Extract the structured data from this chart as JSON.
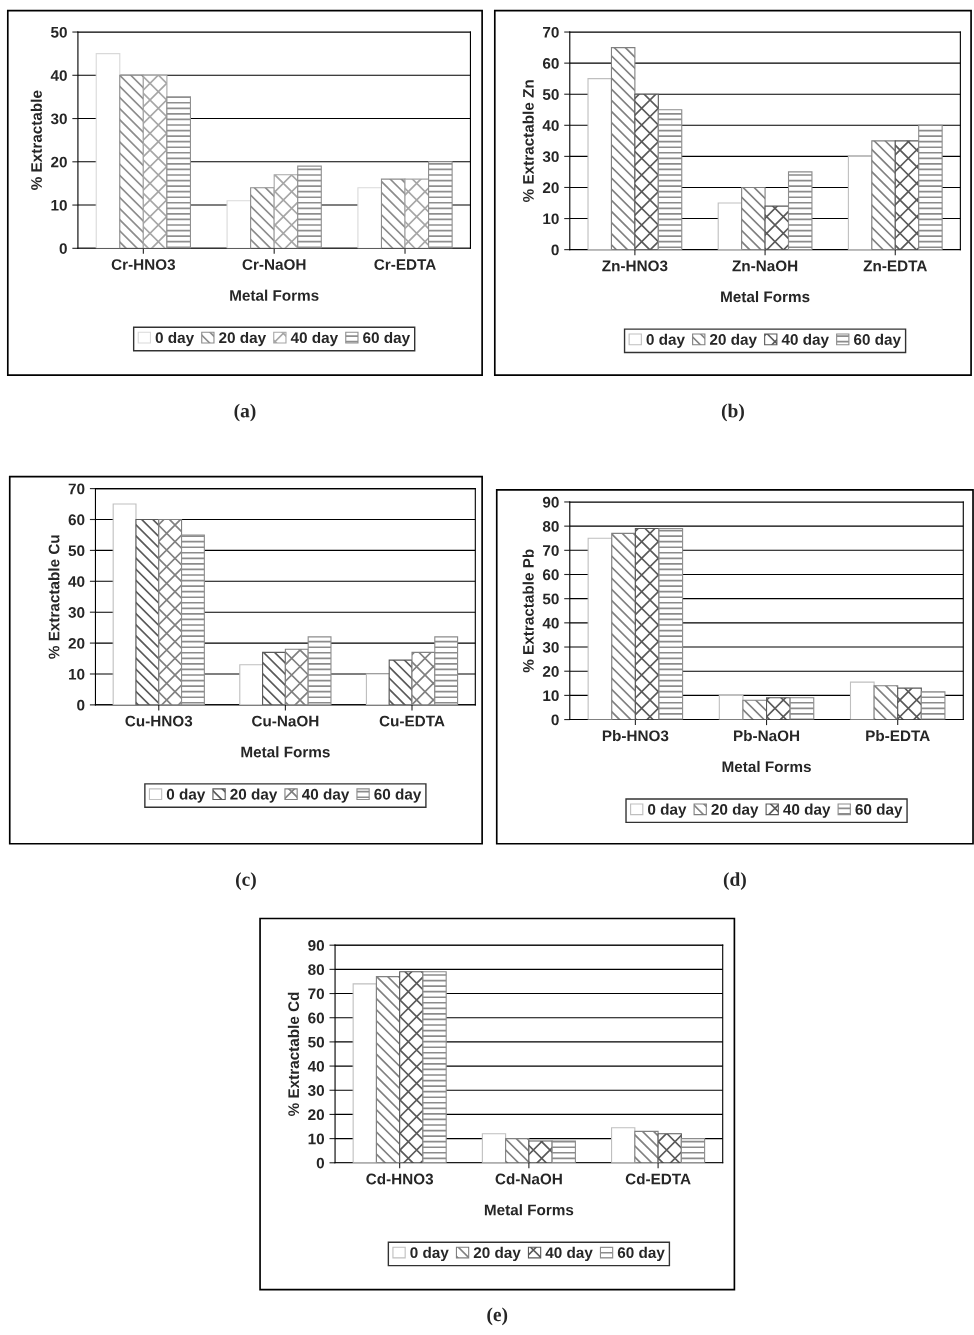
{
  "chart_data": [
    {
      "type": "bar",
      "categories": [
        "Cr-HNO3",
        "Cr-NaOH",
        "Cr-EDTA"
      ],
      "xlabel": "Metal Forms",
      "ylabel": "% Extractable",
      "ylim": [
        0,
        50
      ],
      "yticks": [
        0,
        10,
        20,
        30,
        40,
        50
      ],
      "grid": "y",
      "legend": "bottom",
      "annotations": [
        "(a)"
      ],
      "series": [
        {
          "name": "0 day",
          "color": "#d9d9d9",
          "values": [
            45,
            11,
            14
          ]
        },
        {
          "name": "20 day",
          "color": "#8c8c8c",
          "values": [
            40,
            14,
            16
          ]
        },
        {
          "name": "40 day",
          "color": "#a6a6a6",
          "values": [
            40,
            17,
            16
          ]
        },
        {
          "name": "60 day",
          "color": "#8f8f8f",
          "values": [
            35,
            19,
            20
          ]
        }
      ]
    },
    {
      "type": "bar",
      "categories": [
        "Zn-HNO3",
        "Zn-NaOH",
        "Zn-EDTA"
      ],
      "xlabel": "Metal Forms",
      "ylabel": "% Extractable Zn",
      "ylim": [
        0,
        70
      ],
      "yticks": [
        0,
        10,
        20,
        30,
        40,
        50,
        60,
        70
      ],
      "grid": "y",
      "legend": "bottom",
      "annotations": [
        "(b)"
      ],
      "series": [
        {
          "name": "0 day",
          "color": "#bfbfbf",
          "values": [
            55,
            15,
            30
          ]
        },
        {
          "name": "20 day",
          "color": "#808080",
          "values": [
            65,
            20,
            35
          ]
        },
        {
          "name": "40 day",
          "color": "#595959",
          "values": [
            50,
            14,
            35
          ]
        },
        {
          "name": "60 day",
          "color": "#8c8c8c",
          "values": [
            45,
            25,
            40
          ]
        }
      ]
    },
    {
      "type": "bar",
      "categories": [
        "Cu-HNO3",
        "Cu-NaOH",
        "Cu-EDTA"
      ],
      "xlabel": "Metal Forms",
      "ylabel": "% Extractable Cu",
      "ylim": [
        0,
        70
      ],
      "yticks": [
        0,
        10,
        20,
        30,
        40,
        50,
        60,
        70
      ],
      "grid": "y",
      "legend": "bottom",
      "annotations": [
        "(c)"
      ],
      "series": [
        {
          "name": "0 day",
          "color": "#bfbfbf",
          "values": [
            65,
            13,
            10
          ]
        },
        {
          "name": "20 day",
          "color": "#595959",
          "values": [
            60,
            17,
            14.5
          ]
        },
        {
          "name": "40 day",
          "color": "#808080",
          "values": [
            60,
            18,
            17
          ]
        },
        {
          "name": "60 day",
          "color": "#8c8c8c",
          "values": [
            55,
            22,
            22
          ]
        }
      ]
    },
    {
      "type": "bar",
      "categories": [
        "Pb-HNO3",
        "Pb-NaOH",
        "Pb-EDTA"
      ],
      "xlabel": "Metal Forms",
      "ylabel": "% Extractable Pb",
      "ylim": [
        0,
        90
      ],
      "yticks": [
        0,
        10,
        20,
        30,
        40,
        50,
        60,
        70,
        80,
        90
      ],
      "grid": "y",
      "legend": "bottom",
      "annotations": [
        "(d)"
      ],
      "series": [
        {
          "name": "0 day",
          "color": "#bfbfbf",
          "values": [
            75,
            10,
            15.5
          ]
        },
        {
          "name": "20 day",
          "color": "#808080",
          "values": [
            77,
            8,
            14
          ]
        },
        {
          "name": "40 day",
          "color": "#595959",
          "values": [
            79,
            9,
            13
          ]
        },
        {
          "name": "60 day",
          "color": "#8c8c8c",
          "values": [
            79,
            9,
            11.5
          ]
        }
      ]
    },
    {
      "type": "bar",
      "categories": [
        "Cd-HNO3",
        "Cd-NaOH",
        "Cd-EDTA"
      ],
      "xlabel": "Metal Forms",
      "ylabel": "% Extractable Cd",
      "ylim": [
        0,
        90
      ],
      "yticks": [
        0,
        10,
        20,
        30,
        40,
        50,
        60,
        70,
        80,
        90
      ],
      "grid": "y",
      "legend": "bottom",
      "annotations": [
        "(e)"
      ],
      "series": [
        {
          "name": "0 day",
          "color": "#bfbfbf",
          "values": [
            74,
            12,
            14.5
          ]
        },
        {
          "name": "20 day",
          "color": "#808080",
          "values": [
            77,
            10,
            13
          ]
        },
        {
          "name": "40 day",
          "color": "#595959",
          "values": [
            79,
            9,
            12
          ]
        },
        {
          "name": "60 day",
          "color": "#8c8c8c",
          "values": [
            79,
            9,
            10
          ]
        }
      ]
    }
  ]
}
